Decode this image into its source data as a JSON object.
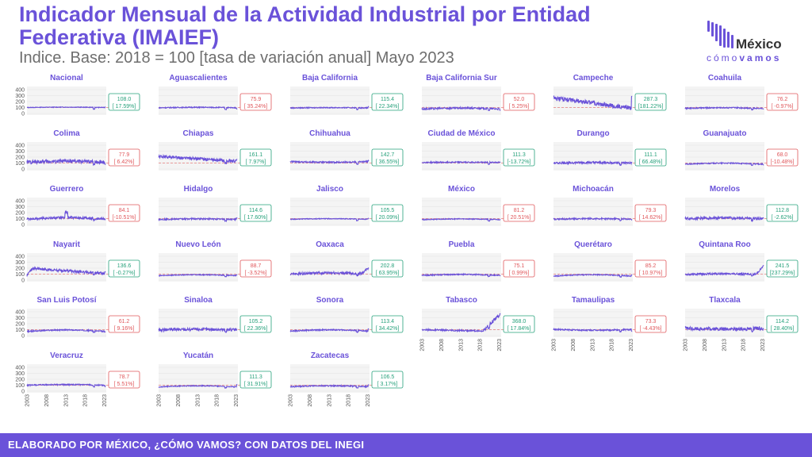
{
  "header": {
    "title": "Indicador Mensual de la Actividad Industrial por Entidad Federativa (IMAIEF)",
    "subtitle": "Indice. Base: 2018 = 100 [tasa de variación anual] Mayo 2023"
  },
  "logo": {
    "name": "México",
    "tag_light": "cómo",
    "tag_bold": "vamos"
  },
  "footer": {
    "text": "ELABORADO POR MÉXICO, ¿CÓMO VAMOS? CON DATOS DEL INEGI"
  },
  "colors": {
    "accent": "#6a52d9",
    "positive": "#26a17b",
    "negative": "#e0575b",
    "reference": "#e88080"
  },
  "chart_data": {
    "type": "line",
    "x_ticks": [
      "2003",
      "2008",
      "2013",
      "2018",
      "2023"
    ],
    "y_ticks": [
      0,
      100,
      200,
      300,
      400
    ],
    "ylim": [
      0,
      400
    ],
    "reference_line": 100,
    "panels": [
      {
        "name": "Nacional",
        "value": "108.0",
        "change": "[ 17.59%]",
        "dir": "up",
        "base": 100,
        "amp": 6,
        "noise": 5,
        "end": 108
      },
      {
        "name": "Aguascalientes",
        "value": "75.9",
        "change": "[ 35.24%]",
        "dir": "down",
        "base": 95,
        "amp": 8,
        "noise": 8,
        "end": 76
      },
      {
        "name": "Baja California",
        "value": "115.4",
        "change": "[ 22.34%]",
        "dir": "up",
        "base": 92,
        "amp": 6,
        "noise": 8,
        "end": 115
      },
      {
        "name": "Baja California Sur",
        "value": "52.0",
        "change": "[ 5.25%]",
        "dir": "down",
        "base": 75,
        "amp": 15,
        "noise": 15,
        "end": 52
      },
      {
        "name": "Campeche",
        "value": "287.3",
        "change": "[181.22%]",
        "dir": "up",
        "base": 170,
        "amp": -40,
        "noise": 35,
        "end": 287,
        "shape": "campeche"
      },
      {
        "name": "Coahuila",
        "value": "76.2",
        "change": "[ -0.97%]",
        "dir": "down",
        "base": 85,
        "amp": 12,
        "noise": 10,
        "end": 76
      },
      {
        "name": "Colima",
        "value": "77.9",
        "change": "[ 6.42%]",
        "dir": "down",
        "base": 115,
        "amp": 15,
        "noise": 30,
        "end": 78
      },
      {
        "name": "Chiapas",
        "value": "161.1",
        "change": "[ 7.97%]",
        "dir": "up",
        "base": 170,
        "amp": -55,
        "noise": 30,
        "end": 161,
        "shape": "decline"
      },
      {
        "name": "Chihuahua",
        "value": "142.7",
        "change": "[ 36.55%]",
        "dir": "up",
        "base": 125,
        "amp": -12,
        "noise": 12,
        "end": 143
      },
      {
        "name": "Ciudad de México",
        "value": "111.3",
        "change": "[-13.72%]",
        "dir": "up",
        "base": 110,
        "amp": 4,
        "noise": 10,
        "end": 111
      },
      {
        "name": "Durango",
        "value": "111.1",
        "change": "[ 66.48%]",
        "dir": "up",
        "base": 100,
        "amp": 8,
        "noise": 18,
        "end": 111
      },
      {
        "name": "Guanajuato",
        "value": "68.0",
        "change": "[-10.48%]",
        "dir": "down",
        "base": 80,
        "amp": 18,
        "noise": 9,
        "end": 68
      },
      {
        "name": "Guerrero",
        "value": "84.1",
        "change": "[-10.51%]",
        "dir": "down",
        "base": 95,
        "amp": 20,
        "noise": 20,
        "end": 84,
        "shape": "spike"
      },
      {
        "name": "Hidalgo",
        "value": "114.6",
        "change": "[ 17.60%]",
        "dir": "up",
        "base": 85,
        "amp": 10,
        "noise": 12,
        "end": 115
      },
      {
        "name": "Jalisco",
        "value": "105.5",
        "change": "[ 20.09%]",
        "dir": "up",
        "base": 88,
        "amp": 10,
        "noise": 6,
        "end": 106
      },
      {
        "name": "México",
        "value": "81.2",
        "change": "[ 20.51%]",
        "dir": "down",
        "base": 82,
        "amp": 12,
        "noise": 7,
        "end": 81
      },
      {
        "name": "Michoacán",
        "value": "79.3",
        "change": "[ 14.62%]",
        "dir": "down",
        "base": 90,
        "amp": 8,
        "noise": 12,
        "end": 79
      },
      {
        "name": "Morelos",
        "value": "112.8",
        "change": "[ -2.62%]",
        "dir": "up",
        "base": 100,
        "amp": 10,
        "noise": 22,
        "end": 113
      },
      {
        "name": "Nayarit",
        "value": "136.6",
        "change": "[ -0.27%]",
        "dir": "up",
        "base": 150,
        "amp": -40,
        "noise": 25,
        "end": 137,
        "shape": "nayarit"
      },
      {
        "name": "Nuevo León",
        "value": "88.7",
        "change": "[ -3.52%]",
        "dir": "down",
        "base": 75,
        "amp": 14,
        "noise": 7,
        "end": 89
      },
      {
        "name": "Oaxaca",
        "value": "202.8",
        "change": "[ 63.95%]",
        "dir": "up",
        "base": 100,
        "amp": 20,
        "noise": 20,
        "end": 203,
        "shape": "uptail"
      },
      {
        "name": "Puebla",
        "value": "75.1",
        "change": "[ 0.99%]",
        "dir": "down",
        "base": 80,
        "amp": 14,
        "noise": 10,
        "end": 75
      },
      {
        "name": "Querétaro",
        "value": "85.2",
        "change": "[ 10.97%]",
        "dir": "down",
        "base": 65,
        "amp": 25,
        "noise": 8,
        "end": 85
      },
      {
        "name": "Quintana Roo",
        "value": "241.5",
        "change": "[237.29%]",
        "dir": "up",
        "base": 95,
        "amp": 10,
        "noise": 15,
        "end": 242,
        "shape": "uptail"
      },
      {
        "name": "San Luis Potosí",
        "value": "61.2",
        "change": "[ 9.16%]",
        "dir": "down",
        "base": 70,
        "amp": 25,
        "noise": 10,
        "end": 61
      },
      {
        "name": "Sinaloa",
        "value": "105.2",
        "change": "[ 22.36%]",
        "dir": "up",
        "base": 95,
        "amp": 12,
        "noise": 25,
        "end": 105
      },
      {
        "name": "Sonora",
        "value": "113.4",
        "change": "[ 34.42%]",
        "dir": "up",
        "base": 75,
        "amp": 22,
        "noise": 10,
        "end": 113
      },
      {
        "name": "Tabasco",
        "value": "368.0",
        "change": "[ 17.84%]",
        "dir": "up",
        "base": 90,
        "amp": 0,
        "noise": 12,
        "end": 368,
        "shape": "tabasco"
      },
      {
        "name": "Tamaulipas",
        "value": "73.3",
        "change": "[ -4.43%]",
        "dir": "down",
        "base": 105,
        "amp": -15,
        "noise": 12,
        "end": 73
      },
      {
        "name": "Tlaxcala",
        "value": "114.2",
        "change": "[ 28.40%]",
        "dir": "up",
        "base": 120,
        "amp": -10,
        "noise": 30,
        "end": 114
      },
      {
        "name": "Veracruz",
        "value": "78.7",
        "change": "[ 5.51%]",
        "dir": "down",
        "base": 100,
        "amp": 10,
        "noise": 10,
        "end": 79
      },
      {
        "name": "Yucatán",
        "value": "111.3",
        "change": "[ 31.91%]",
        "dir": "up",
        "base": 70,
        "amp": 20,
        "noise": 7,
        "end": 111
      },
      {
        "name": "Zacatecas",
        "value": "106.5",
        "change": "[ 3.17%]",
        "dir": "up",
        "base": 75,
        "amp": 15,
        "noise": 10,
        "end": 107
      }
    ]
  }
}
